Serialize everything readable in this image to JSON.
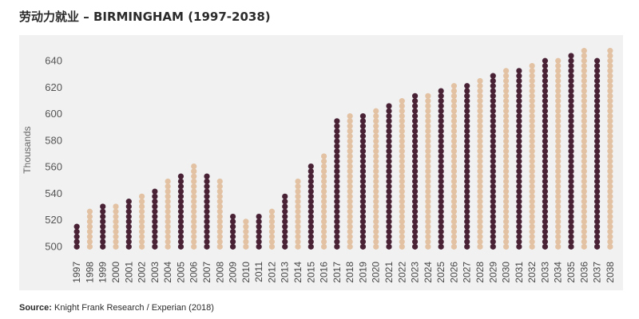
{
  "title": "劳动力就业 – BIRMINGHAM  (1997-2038)",
  "source": {
    "label": "Source:",
    "text": " Knight Frank Research / Experian (2018)"
  },
  "colors": {
    "dark": "#4a2236",
    "light": "#e2c2a2",
    "background": "#f1f1f2"
  },
  "chart_data": {
    "type": "bar",
    "style": "stacked-dots",
    "ylabel": "Thousands",
    "xlabel": "",
    "ylim": [
      496,
      650
    ],
    "yticks": [
      500,
      520,
      540,
      560,
      580,
      600,
      620,
      640
    ],
    "grid": false,
    "categories": [
      "1997",
      "1998",
      "1999",
      "2000",
      "2001",
      "2002",
      "2003",
      "2004",
      "2005",
      "2006",
      "2007",
      "2008",
      "2009",
      "2010",
      "2011",
      "2012",
      "2013",
      "2014",
      "2015",
      "2016",
      "2017",
      "2018",
      "2019",
      "2020",
      "2021",
      "2022",
      "2023",
      "2024",
      "2025",
      "2026",
      "2027",
      "2028",
      "2029",
      "2030",
      "2031",
      "2032",
      "2033",
      "2034",
      "2035",
      "2036",
      "2037",
      "2038"
    ],
    "values": [
      518,
      528,
      532,
      532,
      534,
      538,
      545,
      549,
      556,
      562,
      556,
      552,
      526,
      520,
      523,
      529,
      540,
      551,
      562,
      571,
      596,
      600,
      602,
      605,
      608,
      611,
      614,
      617,
      619,
      622,
      624,
      627,
      630,
      633,
      635,
      638,
      640,
      643,
      645,
      648,
      640,
      650
    ],
    "colors_by_category": [
      "dark",
      "light",
      "dark",
      "light",
      "dark",
      "light",
      "dark",
      "light",
      "dark",
      "light",
      "dark",
      "light",
      "dark",
      "light",
      "dark",
      "light",
      "dark",
      "light",
      "dark",
      "light",
      "dark",
      "light",
      "dark",
      "light",
      "dark",
      "light",
      "dark",
      "light",
      "dark",
      "light",
      "dark",
      "light",
      "dark",
      "light",
      "dark",
      "light",
      "dark",
      "light",
      "dark",
      "light",
      "dark",
      "light"
    ]
  }
}
